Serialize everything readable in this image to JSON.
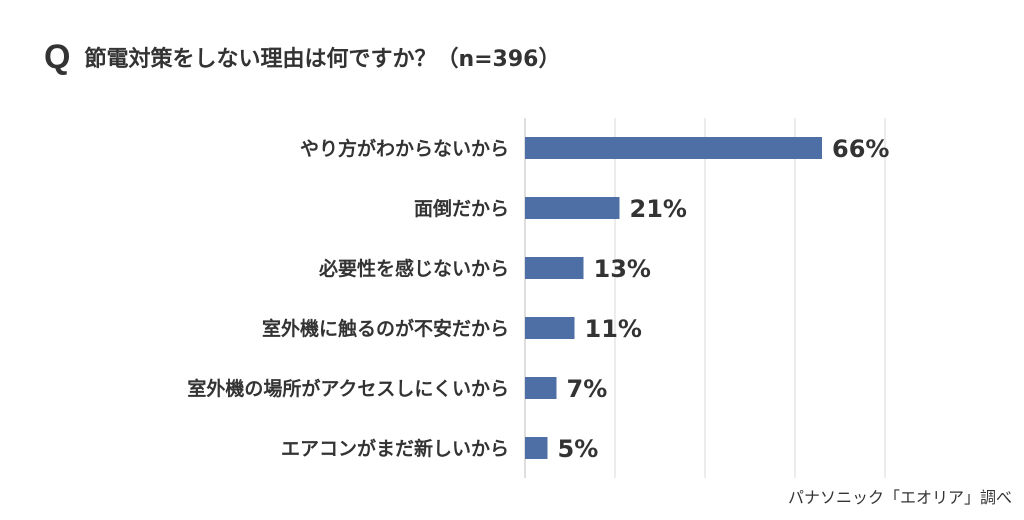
{
  "question_mark": "Q",
  "title": "節電対策をしない理由は何ですか？（n=396）",
  "source": "パナソニック「エオリア」調べ",
  "colors": {
    "bar": "#4e6fa6",
    "grid": "#d9d9d9",
    "axis": "#bfbfbf",
    "text": "#333333"
  },
  "chart_data": {
    "type": "bar",
    "orientation": "horizontal",
    "title": "節電対策をしない理由は何ですか？（n=396）",
    "categories": [
      "やり方がわからないから",
      "面倒だから",
      "必要性を感じないから",
      "室外機に触るのが不安だから",
      "室外機の場所がアクセスしにくいから",
      "エアコンがまだ新しいから"
    ],
    "values": [
      66,
      21,
      13,
      11,
      7,
      5
    ],
    "value_labels": [
      "66%",
      "21%",
      "13%",
      "11%",
      "7%",
      "5%"
    ],
    "xlim": [
      0,
      80
    ],
    "grid": true
  }
}
